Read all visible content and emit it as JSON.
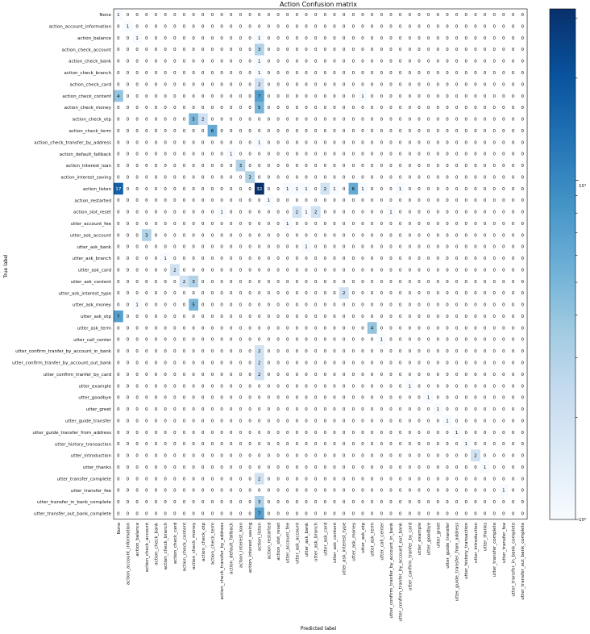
{
  "chart_data": {
    "type": "heatmap",
    "title": "Action Confusion matrix",
    "xlabel": "Predicted label",
    "ylabel": "True label",
    "labels": [
      "None",
      "action_account_information",
      "action_balance",
      "action_check_account",
      "action_check_bank",
      "action_check_branch",
      "action_check_card",
      "action_check_content",
      "action_check_money",
      "action_check_otp",
      "action_check_term",
      "action_check_transfer_by_address",
      "action_default_fallback",
      "action_interest_loan",
      "action_interest_saving",
      "action_listen",
      "action_restarted",
      "action_slot_reset",
      "utter_account_fee",
      "utter_ask_account",
      "utter_ask_bank",
      "utter_ask_branch",
      "utter_ask_card",
      "utter_ask_content",
      "utter_ask_interest_type",
      "utter_ask_money",
      "utter_ask_otp",
      "utter_ask_term",
      "utter_call_center",
      "utter_confirm_tranfer_by_account_in_bank",
      "utter_confirm_tranfer_by_account_out_bank",
      "utter_confirm_tranfer_by_card",
      "utter_example",
      "utter_goodbye",
      "utter_greet",
      "utter_guide_transfer",
      "utter_guide_transfer_from_address",
      "utter_history_transaction",
      "utter_introduction",
      "utter_thanks",
      "utter_transfer_complete",
      "utter_transfer_fee",
      "utter_transfer_in_bank_complete",
      "utter_transfer_out_bank_complete"
    ],
    "nonzero": [
      [
        0,
        0,
        1
      ],
      [
        1,
        1,
        1
      ],
      [
        2,
        2,
        1
      ],
      [
        2,
        15,
        1
      ],
      [
        3,
        15,
        3
      ],
      [
        4,
        15,
        1
      ],
      [
        5,
        15,
        1
      ],
      [
        6,
        15,
        2
      ],
      [
        7,
        0,
        4
      ],
      [
        7,
        15,
        7
      ],
      [
        7,
        26,
        1
      ],
      [
        8,
        15,
        5
      ],
      [
        9,
        8,
        5
      ],
      [
        9,
        9,
        2
      ],
      [
        10,
        10,
        6
      ],
      [
        11,
        15,
        1
      ],
      [
        12,
        12,
        1
      ],
      [
        13,
        13,
        3
      ],
      [
        14,
        14,
        3
      ],
      [
        15,
        0,
        17
      ],
      [
        15,
        15,
        32
      ],
      [
        15,
        18,
        1
      ],
      [
        15,
        19,
        1
      ],
      [
        15,
        20,
        1
      ],
      [
        15,
        22,
        2
      ],
      [
        15,
        23,
        1
      ],
      [
        15,
        25,
        6
      ],
      [
        15,
        26,
        1
      ],
      [
        15,
        30,
        1
      ],
      [
        16,
        16,
        1
      ],
      [
        17,
        11,
        1
      ],
      [
        17,
        19,
        2
      ],
      [
        17,
        20,
        1
      ],
      [
        17,
        21,
        2
      ],
      [
        17,
        29,
        1
      ],
      [
        18,
        18,
        1
      ],
      [
        19,
        3,
        3
      ],
      [
        20,
        20,
        1
      ],
      [
        21,
        5,
        1
      ],
      [
        22,
        6,
        2
      ],
      [
        23,
        7,
        2
      ],
      [
        23,
        8,
        3
      ],
      [
        24,
        24,
        2
      ],
      [
        25,
        2,
        1
      ],
      [
        25,
        8,
        5
      ],
      [
        26,
        0,
        7
      ],
      [
        27,
        27,
        4
      ],
      [
        28,
        28,
        1
      ],
      [
        29,
        15,
        2
      ],
      [
        30,
        15,
        2
      ],
      [
        31,
        15,
        2
      ],
      [
        32,
        31,
        1
      ],
      [
        33,
        33,
        1
      ],
      [
        34,
        34,
        1
      ],
      [
        35,
        35,
        1
      ],
      [
        36,
        36,
        1
      ],
      [
        37,
        37,
        1
      ],
      [
        38,
        38,
        2
      ],
      [
        39,
        39,
        1
      ],
      [
        40,
        15,
        2
      ],
      [
        41,
        41,
        1
      ],
      [
        42,
        15,
        3
      ],
      [
        43,
        15,
        7
      ]
    ],
    "color_scale": "log",
    "vmin": 1,
    "vmax": 32,
    "colorbar": {
      "tick_top": "10¹",
      "tick_bottom": "10⁰"
    },
    "colors": {
      "low": "#f7fbff",
      "high": "#08306b"
    }
  }
}
